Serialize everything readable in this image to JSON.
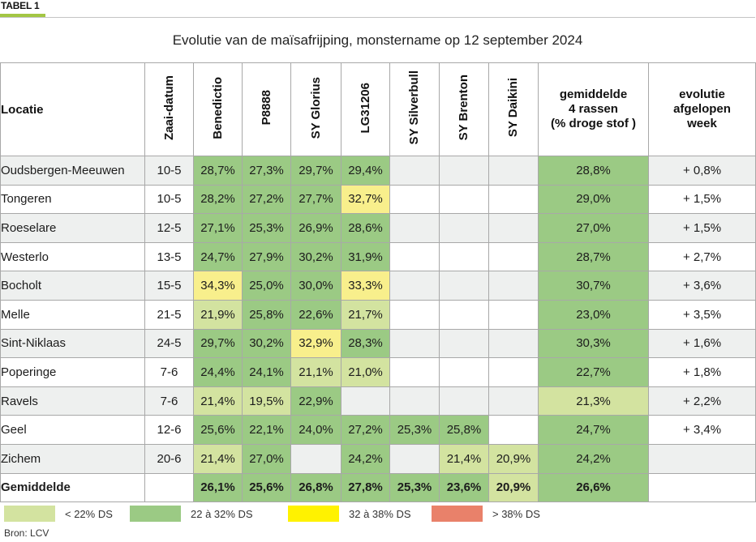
{
  "label": "TABEL 1",
  "chart_data": {
    "type": "table",
    "title": "Evolutie van de maïsafrijping, monstername op 12 september 2024",
    "columns": {
      "locatie": "Locatie",
      "zaaidatum": "Zaai-datum",
      "rassen": [
        "Benedictio",
        "P8888",
        "SY Glorius",
        "LG31206",
        "SY Silverbull",
        "SY Brenton",
        "SY Daikini"
      ],
      "gemiddelde": [
        "gemiddelde",
        "4 rassen",
        "(% droge stof )"
      ],
      "evolutie": [
        "evolutie",
        "afgelopen",
        "week"
      ]
    },
    "rows": [
      {
        "locatie": "Oudsbergen-Meeuwen",
        "zaaidatum": "10-5",
        "values": [
          "28,7%",
          "27,3%",
          "29,7%",
          "29,4%",
          "",
          "",
          ""
        ],
        "gemiddelde": "28,8%",
        "evolutie": "+ 0,8%"
      },
      {
        "locatie": "Tongeren",
        "zaaidatum": "10-5",
        "values": [
          "28,2%",
          "27,2%",
          "27,7%",
          "32,7%",
          "",
          "",
          ""
        ],
        "gemiddelde": "29,0%",
        "evolutie": "+ 1,5%"
      },
      {
        "locatie": "Roeselare",
        "zaaidatum": "12-5",
        "values": [
          "27,1%",
          "25,3%",
          "26,9%",
          "28,6%",
          "",
          "",
          ""
        ],
        "gemiddelde": "27,0%",
        "evolutie": "+ 1,5%"
      },
      {
        "locatie": "Westerlo",
        "zaaidatum": "13-5",
        "values": [
          "24,7%",
          "27,9%",
          "30,2%",
          "31,9%",
          "",
          "",
          ""
        ],
        "gemiddelde": "28,7%",
        "evolutie": "+ 2,7%"
      },
      {
        "locatie": "Bocholt",
        "zaaidatum": "15-5",
        "values": [
          "34,3%",
          "25,0%",
          "30,0%",
          "33,3%",
          "",
          "",
          ""
        ],
        "gemiddelde": "30,7%",
        "evolutie": "+ 3,6%"
      },
      {
        "locatie": "Melle",
        "zaaidatum": "21-5",
        "values": [
          "21,9%",
          "25,8%",
          "22,6%",
          "21,7%",
          "",
          "",
          ""
        ],
        "gemiddelde": "23,0%",
        "evolutie": "+ 3,5%"
      },
      {
        "locatie": "Sint-Niklaas",
        "zaaidatum": "24-5",
        "values": [
          "29,7%",
          "30,2%",
          "32,9%",
          "28,3%",
          "",
          "",
          ""
        ],
        "gemiddelde": "30,3%",
        "evolutie": "+ 1,6%"
      },
      {
        "locatie": "Poperinge",
        "zaaidatum": "7-6",
        "values": [
          "24,4%",
          "24,1%",
          "21,1%",
          "21,0%",
          "",
          "",
          ""
        ],
        "gemiddelde": "22,7%",
        "evolutie": "+ 1,8%"
      },
      {
        "locatie": "Ravels",
        "zaaidatum": "7-6",
        "values": [
          "21,4%",
          "19,5%",
          "22,9%",
          "",
          "",
          "",
          ""
        ],
        "gemiddelde": "21,3%",
        "evolutie": "+ 2,2%"
      },
      {
        "locatie": "Geel",
        "zaaidatum": "12-6",
        "values": [
          "25,6%",
          "22,1%",
          "24,0%",
          "27,2%",
          "25,3%",
          "25,8%",
          ""
        ],
        "gemiddelde": "24,7%",
        "evolutie": "+ 3,4%"
      },
      {
        "locatie": "Zichem",
        "zaaidatum": "20-6",
        "values": [
          "21,4%",
          "27,0%",
          "",
          "24,2%",
          "",
          "21,4%",
          "20,9%"
        ],
        "gemiddelde": "24,2%",
        "evolutie": ""
      }
    ],
    "total": {
      "label": "Gemiddelde",
      "values": [
        "26,1%",
        "25,6%",
        "26,8%",
        "27,8%",
        "25,3%",
        "23,6%",
        "20,9%"
      ],
      "gemiddelde": "26,6%"
    },
    "legend": [
      {
        "label": "< 22% DS",
        "color": "#d3e3a0"
      },
      {
        "label": "22 à 32% DS",
        "color": "#9bca84"
      },
      {
        "label": "32 à 38% DS",
        "color": "#fff200"
      },
      {
        "label": "> 38% DS",
        "color": "#e9816a"
      }
    ],
    "source": "Bron: LCV"
  },
  "thresholds": [
    22,
    32,
    38
  ],
  "colors": {
    "band_low": "#d3e3a0",
    "band_mid": "#9bca84",
    "band_high": "#f8ef8c",
    "band_very_high": "#e9816a",
    "accent_bar": "#a3c644"
  }
}
